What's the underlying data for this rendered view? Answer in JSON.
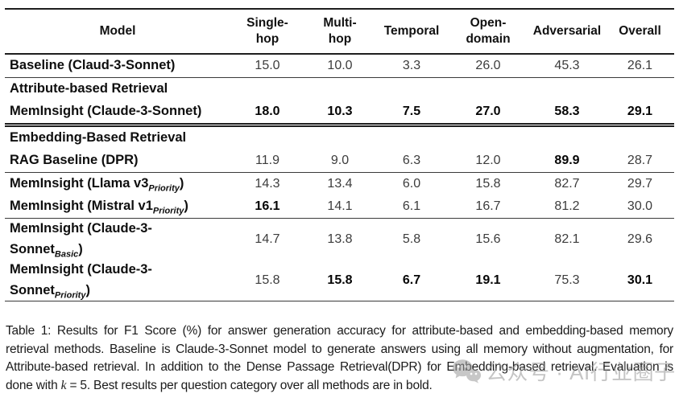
{
  "table": {
    "columns": [
      "Model",
      "Single-hop",
      "Multi-hop",
      "Temporal",
      "Open-domain",
      "Adversarial",
      "Overall"
    ],
    "rows": [
      {
        "type": "data",
        "name": [
          {
            "t": "Baseline (Claud-3-Sonnet)"
          }
        ],
        "values": [
          {
            "v": "15.0"
          },
          {
            "v": "10.0"
          },
          {
            "v": "3.3"
          },
          {
            "v": "26.0"
          },
          {
            "v": "45.3"
          },
          {
            "v": "26.1"
          }
        ],
        "rule_below": "single"
      },
      {
        "type": "section",
        "name": [
          {
            "t": "Attribute-based Retrieval"
          }
        ]
      },
      {
        "type": "data",
        "name": [
          {
            "t": "MemInsight (Claude-3-Sonnet)"
          }
        ],
        "values": [
          {
            "v": "18.0",
            "b": true
          },
          {
            "v": "10.3",
            "b": true
          },
          {
            "v": "7.5",
            "b": true
          },
          {
            "v": "27.0",
            "b": true
          },
          {
            "v": "58.3",
            "b": true
          },
          {
            "v": "29.1",
            "b": true
          }
        ],
        "rule_below": "double"
      },
      {
        "type": "section",
        "name": [
          {
            "t": "Embedding-Based Retrieval"
          }
        ]
      },
      {
        "type": "data",
        "name": [
          {
            "t": "RAG Baseline (DPR)"
          }
        ],
        "values": [
          {
            "v": "11.9"
          },
          {
            "v": "9.0"
          },
          {
            "v": "6.3"
          },
          {
            "v": "12.0"
          },
          {
            "v": "89.9",
            "b": true
          },
          {
            "v": "28.7"
          }
        ],
        "rule_below": "single"
      },
      {
        "type": "data",
        "name": [
          {
            "t": "MemInsight (Llama v3"
          },
          {
            "sub": "Priority"
          },
          {
            "t": ")"
          }
        ],
        "values": [
          {
            "v": "14.3"
          },
          {
            "v": "13.4"
          },
          {
            "v": "6.0"
          },
          {
            "v": "15.8"
          },
          {
            "v": "82.7"
          },
          {
            "v": "29.7"
          }
        ]
      },
      {
        "type": "data",
        "name": [
          {
            "t": "MemInsight (Mistral v1"
          },
          {
            "sub": "Priority"
          },
          {
            "t": ")"
          }
        ],
        "values": [
          {
            "v": "16.1",
            "b": true
          },
          {
            "v": "14.1"
          },
          {
            "v": "6.1"
          },
          {
            "v": "16.7"
          },
          {
            "v": "81.2"
          },
          {
            "v": "30.0"
          }
        ],
        "rule_below": "single"
      },
      {
        "type": "data",
        "name": [
          {
            "t": "MemInsight (Claude-3-"
          },
          {
            "br": true
          },
          {
            "t": "Sonnet"
          },
          {
            "sub": "Basic"
          },
          {
            "t": ")"
          }
        ],
        "values": [
          {
            "v": "14.7"
          },
          {
            "v": "13.8"
          },
          {
            "v": "5.8"
          },
          {
            "v": "15.6"
          },
          {
            "v": "82.1"
          },
          {
            "v": "29.6"
          }
        ]
      },
      {
        "type": "data",
        "name": [
          {
            "t": "MemInsight (Claude-3-"
          },
          {
            "br": true
          },
          {
            "t": "Sonnet"
          },
          {
            "sub": "Priority"
          },
          {
            "t": ")"
          }
        ],
        "values": [
          {
            "v": "15.8"
          },
          {
            "v": "15.8",
            "b": true
          },
          {
            "v": "6.7",
            "b": true
          },
          {
            "v": "19.1",
            "b": true
          },
          {
            "v": "75.3"
          },
          {
            "v": "30.1",
            "b": true
          }
        ],
        "rule_below": "single"
      }
    ]
  },
  "caption": {
    "part1": "Table 1:  Results for F1 Score (%) for answer generation accuracy for attribute-based and embedding-based memory retrieval methods. Baseline is Claude-3-Sonnet model to generate answers using all memory without augmentation, for Attribute-based retrieval. In addition to the Dense Passage Retrieval(DPR) for Embedding-based retrieval. Evaluation is done with ",
    "k_variable": "k",
    "part2": " = 5. Best results per question category over all methods are in bold."
  },
  "watermark": {
    "text": "公众号 · AI行业圈子",
    "color": "#969696"
  }
}
